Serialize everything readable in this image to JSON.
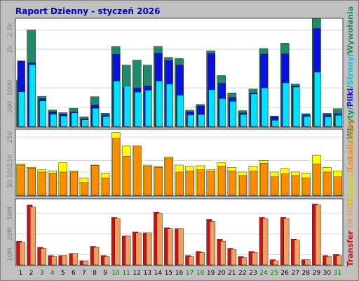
{
  "chart_data": {
    "type": "bar",
    "title": "Raport Dzienny -  styczeń 2026",
    "categories": [
      "1",
      "2",
      "3",
      "4",
      "5",
      "6",
      "7",
      "8",
      "9",
      "10",
      "11",
      "12",
      "13",
      "14",
      "15",
      "16",
      "17",
      "18",
      "19",
      "20",
      "21",
      "22",
      "23",
      "24",
      "25",
      "26",
      "27",
      "28",
      "29",
      "30",
      "31"
    ],
    "weekend_categories": [
      "3",
      "4",
      "10",
      "11",
      "17",
      "18",
      "24",
      "25",
      "31"
    ],
    "colors": {
      "background": "#c0c0c0",
      "panel": "#ffffff",
      "wizyty": "#1f8a6a",
      "strony": "#0a10e0",
      "pliki": "#00e0ff",
      "wejscia": "#ffff00",
      "lokalizacje": "#ff8c00",
      "in": "#d01010",
      "out": "#f0a060",
      "title": "#0000cc",
      "weekend_label": "#008000"
    },
    "panels": [
      {
        "id": "hits",
        "ylim": [
          0,
          2750
        ],
        "y_ticks": [
          {
            "value": 500,
            "label": "500"
          },
          {
            "value": 1000,
            "label": "1000"
          },
          {
            "value": 2000,
            "label": "2k"
          },
          {
            "value": 2500,
            "label": "2.5k"
          }
        ],
        "series": [
          {
            "name": "Wizyty",
            "values": [
              1200,
              2500,
              780,
              430,
              360,
              470,
              250,
              770,
              340,
              2070,
              1590,
              1720,
              1590,
              2070,
              1790,
              1760,
              420,
              570,
              1960,
              1320,
              870,
              410,
              970,
              2020,
              270,
              2160,
              1100,
              330,
              2800,
              340,
              460
            ]
          },
          {
            "name": "Strony",
            "values": [
              1700,
              1650,
              720,
              380,
              320,
              380,
              200,
              560,
              300,
              1870,
              1000,
              1000,
              1050,
              1900,
              1710,
              1590,
              380,
              530,
              1890,
              1120,
              750,
              350,
              870,
              1880,
              250,
              1880,
              1050,
              300,
              2540,
              300,
              330
            ]
          },
          {
            "name": "Pliki",
            "values": [
              900,
              1600,
              660,
              320,
              270,
              350,
              170,
              470,
              260,
              1180,
              1050,
              890,
              940,
              1180,
              1100,
              810,
              300,
              310,
              950,
              720,
              650,
              310,
              840,
              1000,
              160,
              1130,
              1020,
              260,
              1410,
              250,
              290
            ]
          }
        ]
      },
      {
        "id": "visits",
        "ylim": [
          0,
          275
        ],
        "y_ticks": [
          {
            "value": 50,
            "label": "50"
          },
          {
            "value": 100,
            "label": "100"
          },
          {
            "value": 150,
            "label": "150"
          },
          {
            "value": 250,
            "label": "250"
          }
        ],
        "series": [
          {
            "name": "Wejścia",
            "values": [
              135,
              120,
              110,
              105,
              140,
              105,
              75,
              130,
              95,
              270,
              212,
              212,
              130,
              125,
              165,
              130,
              125,
              127,
              110,
              140,
              120,
              100,
              125,
              150,
              100,
              115,
              100,
              95,
              172,
              120,
              105
            ]
          },
          {
            "name": "Lokalizacje",
            "values": [
              130,
              117,
              100,
              95,
              100,
              100,
              55,
              128,
              75,
              245,
              168,
              212,
              125,
              120,
              160,
              100,
              105,
              110,
              105,
              125,
              105,
              85,
              105,
              138,
              80,
              93,
              85,
              75,
              135,
              100,
              80
            ]
          }
        ]
      },
      {
        "id": "transfer",
        "ylim": [
          0,
          62
        ],
        "y_ticks": [
          {
            "value": 10,
            "label": "10M"
          },
          {
            "value": 30,
            "label": "30M"
          },
          {
            "value": 50,
            "label": "50M"
          }
        ],
        "series": [
          {
            "name": "IN",
            "values": [
              23,
              58,
              17,
              9,
              9,
              11,
              4,
              18,
              9,
              46,
              28,
              32,
              31,
              51,
              36,
              35,
              9,
              13,
              44,
              25,
              16,
              8,
              13,
              46,
              5,
              46,
              25,
              5,
              59,
              9,
              10
            ]
          },
          {
            "name": "OUT",
            "values": [
              22,
              56,
              16,
              8,
              9,
              11,
              4,
              17,
              8,
              45,
              28,
              31,
              31,
              50,
              35,
              35,
              8,
              12,
              42,
              23,
              15,
              7,
              12,
              45,
              4,
              45,
              24,
              5,
              58,
              8,
              9
            ]
          }
        ]
      }
    ],
    "legend_right": {
      "hits": [
        {
          "text": "Wizyty",
          "color": "#1f8a6a"
        },
        {
          "text": "/",
          "color": "#1f8a6a"
        },
        {
          "text": "Pliki",
          "color": "#0a10e0"
        },
        {
          "text": "/",
          "color": "#1f8a6a"
        },
        {
          "text": "Strony",
          "color": "#00c8e8"
        },
        {
          "text": "/",
          "color": "#1f8a6a"
        },
        {
          "text": "Wywołania",
          "color": "#1f8a6a"
        }
      ],
      "visits": [
        {
          "text": "Wejścia",
          "color": "#d8d800"
        },
        {
          "text": "/",
          "color": "#ff8c00"
        },
        {
          "text": "Lokalizacje",
          "color": "#ff8c00"
        },
        {
          "text": "/",
          "color": "#ff8c00"
        }
      ],
      "transfer": [
        {
          "text": "Transfer",
          "color": "#d01010"
        },
        {
          "text": "IN",
          "color": "#e8a070"
        },
        {
          "text": "OUT",
          "color": "#e8a070"
        }
      ]
    }
  }
}
